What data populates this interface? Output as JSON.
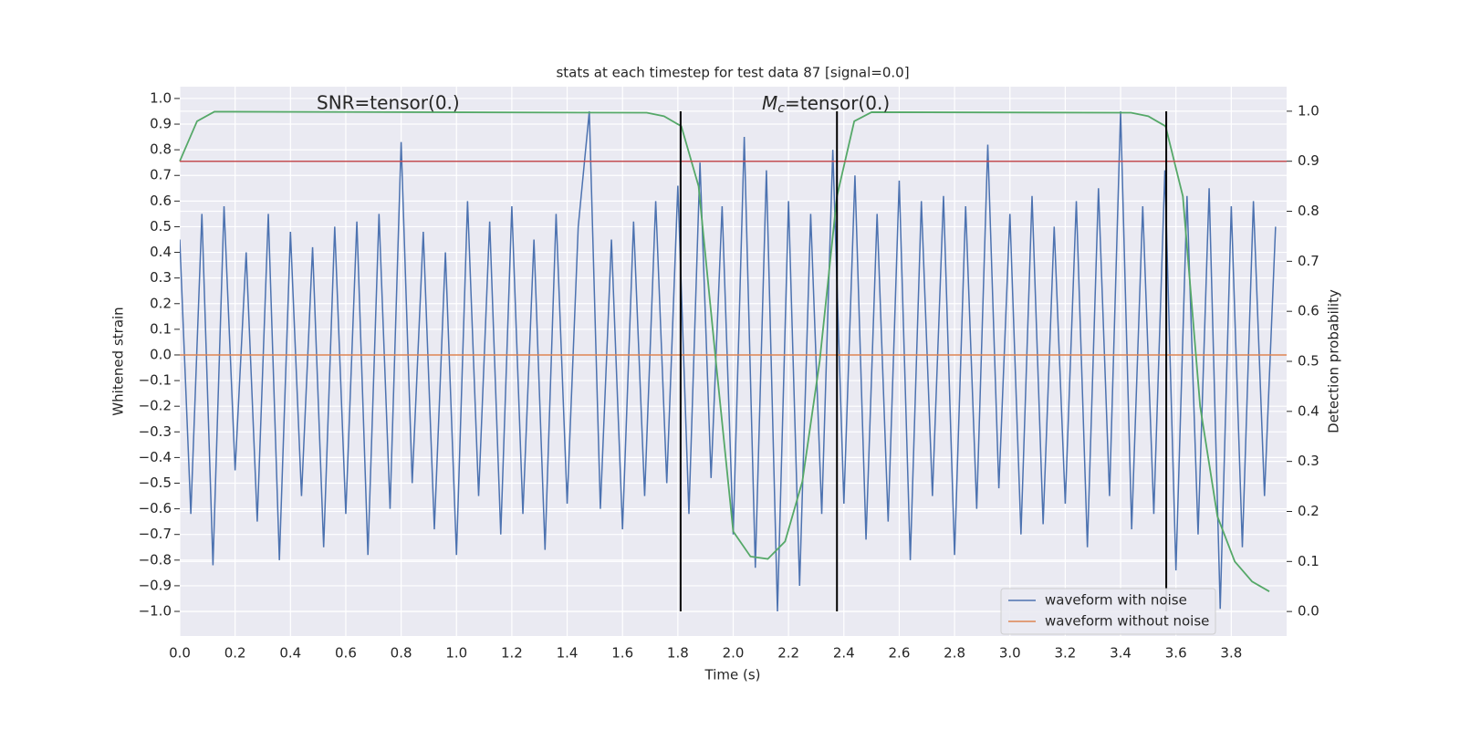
{
  "chart_data": {
    "type": "line",
    "title": "stats at each timestep for test data 87 [signal=0.0]",
    "xlabel": "Time (s)",
    "ylabel": "Whitened strain",
    "y2label": "Detection probability",
    "annotations": [
      {
        "text": "SNR=tensor(0.)"
      },
      {
        "symbol": "M",
        "subscript": "c",
        "text": "=tensor(0.)"
      }
    ],
    "xlim": [
      0,
      4.0
    ],
    "ylim": [
      -1.096,
      1.046
    ],
    "y2lim": [
      -0.049,
      1.049
    ],
    "grid": true,
    "legend": "lower right",
    "xticks": [
      {
        "value": 0,
        "label": "0.0"
      },
      0.2,
      0.4,
      0.6,
      0.8,
      {
        "value": 1,
        "label": "1.0"
      },
      1.2,
      1.4,
      1.6,
      1.8,
      {
        "value": 2,
        "label": "2.0"
      },
      2.2,
      2.4,
      2.6,
      2.8,
      {
        "value": 3,
        "label": "3.0"
      },
      3.2,
      3.4,
      3.6,
      3.8
    ],
    "yticks": [
      {
        "value": -1,
        "label": "−1.0"
      },
      {
        "value": -0.9,
        "label": "−0.9"
      },
      {
        "value": -0.8,
        "label": "−0.8"
      },
      {
        "value": -0.7,
        "label": "−0.7"
      },
      {
        "value": -0.6,
        "label": "−0.6"
      },
      {
        "value": -0.5,
        "label": "−0.5"
      },
      {
        "value": -0.4,
        "label": "−0.4"
      },
      {
        "value": -0.3,
        "label": "−0.3"
      },
      {
        "value": -0.2,
        "label": "−0.2"
      },
      {
        "value": -0.1,
        "label": "−0.1"
      },
      {
        "value": 0,
        "label": "0.0"
      },
      0.1,
      0.2,
      0.3,
      0.4,
      0.5,
      0.6,
      0.7,
      0.8,
      0.9,
      {
        "value": 1,
        "label": "1.0"
      }
    ],
    "y2ticks": [
      {
        "value": 0,
        "label": "0.0"
      },
      0.1,
      0.2,
      0.3,
      0.4,
      0.5,
      0.6,
      0.7,
      0.8,
      0.9,
      {
        "value": 1,
        "label": "1.0"
      }
    ],
    "series": [
      {
        "name": "waveform with noise",
        "color": "#4c72b0",
        "x": [
          0,
          0.04,
          0.08,
          0.12,
          0.16,
          0.2,
          0.24,
          0.28,
          0.32,
          0.36,
          0.4,
          0.44,
          0.48,
          0.52,
          0.56,
          0.6,
          0.64,
          0.68,
          0.72,
          0.76,
          0.8,
          0.84,
          0.88,
          0.92,
          0.96,
          1,
          1.04,
          1.08,
          1.12,
          1.16,
          1.2,
          1.24,
          1.28,
          1.32,
          1.36,
          1.4,
          1.44,
          1.48,
          1.52,
          1.56,
          1.6,
          1.64,
          1.68,
          1.72,
          1.76,
          1.8,
          1.84,
          1.88,
          1.92,
          1.96,
          2,
          2.04,
          2.08,
          2.12,
          2.16,
          2.2,
          2.24,
          2.28,
          2.32,
          2.36,
          2.4,
          2.44,
          2.48,
          2.52,
          2.56,
          2.6,
          2.64,
          2.68,
          2.72,
          2.76,
          2.8,
          2.84,
          2.88,
          2.92,
          2.96,
          3,
          3.04,
          3.08,
          3.12,
          3.16,
          3.2,
          3.24,
          3.28,
          3.32,
          3.36,
          3.4,
          3.44,
          3.48,
          3.52,
          3.56,
          3.6,
          3.64,
          3.68,
          3.72,
          3.76,
          3.8,
          3.84,
          3.88,
          3.92,
          3.96
        ],
        "values": [
          0.45,
          -0.62,
          0.55,
          -0.82,
          0.58,
          -0.45,
          0.4,
          -0.65,
          0.55,
          -0.8,
          0.48,
          -0.55,
          0.42,
          -0.75,
          0.5,
          -0.62,
          0.52,
          -0.78,
          0.55,
          -0.6,
          0.83,
          -0.5,
          0.48,
          -0.68,
          0.4,
          -0.78,
          0.6,
          -0.55,
          0.52,
          -0.7,
          0.58,
          -0.62,
          0.45,
          -0.76,
          0.55,
          -0.58,
          0.5,
          0.95,
          -0.6,
          0.45,
          -0.68,
          0.52,
          -0.55,
          0.6,
          -0.5,
          0.66,
          -0.62,
          0.75,
          -0.48,
          0.58,
          -0.7,
          0.85,
          -0.83,
          0.72,
          -1.0,
          0.6,
          -0.9,
          0.55,
          -0.62,
          0.8,
          -0.58,
          0.7,
          -0.72,
          0.55,
          -0.65,
          0.68,
          -0.8,
          0.6,
          -0.55,
          0.62,
          -0.78,
          0.58,
          -0.6,
          0.82,
          -0.52,
          0.55,
          -0.7,
          0.62,
          -0.66,
          0.5,
          -0.58,
          0.6,
          -0.75,
          0.65,
          -0.55,
          0.95,
          -0.68,
          0.58,
          -0.62,
          0.72,
          -0.84,
          0.62,
          -0.7,
          0.65,
          -0.99,
          0.58,
          -0.75,
          0.6,
          -0.55,
          0.5
        ]
      },
      {
        "name": "waveform without noise",
        "color": "#dd8452",
        "x": [
          0,
          4.0
        ],
        "values": [
          0,
          0
        ]
      }
    ],
    "probability": {
      "color": "#55a868",
      "axis": "y2",
      "x": [
        0,
        0.0625,
        0.125,
        1.6875,
        1.75,
        1.8125,
        1.875,
        1.9375,
        2.0,
        2.0625,
        2.125,
        2.1875,
        2.25,
        2.3125,
        2.375,
        2.4375,
        2.5,
        3.4375,
        3.5,
        3.5625,
        3.625,
        3.6875,
        3.75,
        3.8125,
        3.875,
        3.9375
      ],
      "values": [
        0.9,
        0.98,
        0.999,
        0.997,
        0.99,
        0.97,
        0.85,
        0.5,
        0.16,
        0.11,
        0.105,
        0.14,
        0.26,
        0.5,
        0.83,
        0.98,
        0.998,
        0.997,
        0.99,
        0.97,
        0.83,
        0.41,
        0.19,
        0.1,
        0.06,
        0.04
      ]
    },
    "threshold": {
      "value": 0.9,
      "color": "#c44e52",
      "axis": "y2"
    },
    "vlines": {
      "x": [
        1.81,
        2.375,
        3.565
      ],
      "ymin": -1,
      "ymax": 0.95,
      "color": "#000000"
    }
  }
}
